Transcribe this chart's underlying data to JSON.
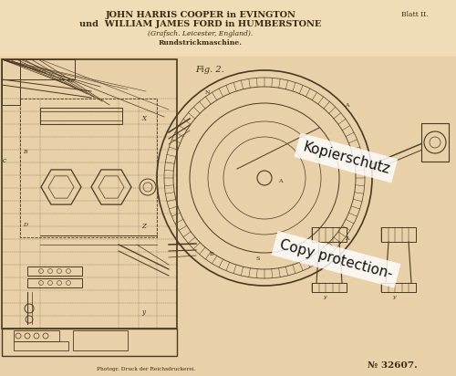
{
  "bg_color": "#e8d0a8",
  "paper_color": "#e5cc9f",
  "title_line1": "JOHN HARRIS COOPER in EVINGTON",
  "title_line2": "und  WILLIAM JAMES FORD in HUMBERSTONE",
  "title_line3": "(Grafsch. Leicester, England).",
  "subtitle": "Rundstrickmaschine.",
  "blatt": "Blatt II.",
  "fig_label": "Fig. 2.",
  "patent_no": "№ 32607.",
  "bottom_text": "Photogr. Druck der Reichsdruckerei.",
  "watermark1": "Kopierschutz",
  "watermark2": "Copy protection-",
  "ink_color": "#3a2a10",
  "line_color": "#4a3820",
  "watermark_color": "#111111",
  "header_bg": "#f0ddb8"
}
